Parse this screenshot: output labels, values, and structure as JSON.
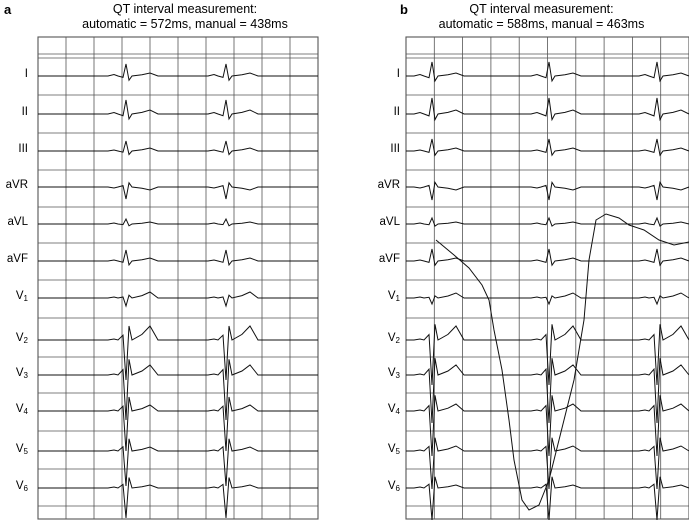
{
  "panels": [
    {
      "letter": "a",
      "title_line1": "QT interval measurement:",
      "title_line2": "automatic = 572ms, manual = 438ms"
    },
    {
      "letter": "b",
      "title_line1": "QT interval measurement:",
      "title_line2": "automatic = 588ms, manual = 463ms"
    }
  ],
  "leads": [
    {
      "name": "I",
      "sub": ""
    },
    {
      "name": "II",
      "sub": ""
    },
    {
      "name": "III",
      "sub": ""
    },
    {
      "name": "aVR",
      "sub": ""
    },
    {
      "name": "aVL",
      "sub": ""
    },
    {
      "name": "aVF",
      "sub": ""
    },
    {
      "name": "V",
      "sub": "1"
    },
    {
      "name": "V",
      "sub": "2"
    },
    {
      "name": "V",
      "sub": "3"
    },
    {
      "name": "V",
      "sub": "4"
    },
    {
      "name": "V",
      "sub": "5"
    },
    {
      "name": "V",
      "sub": "6"
    }
  ],
  "colors": {
    "grid": "#555555",
    "trace": "#111111",
    "background": "#ffffff"
  }
}
